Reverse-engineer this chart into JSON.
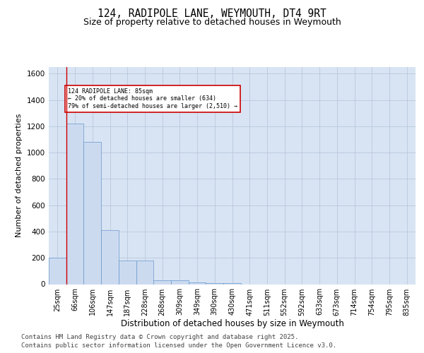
{
  "title_line1": "124, RADIPOLE LANE, WEYMOUTH, DT4 9RT",
  "title_line2": "Size of property relative to detached houses in Weymouth",
  "xlabel": "Distribution of detached houses by size in Weymouth",
  "ylabel": "Number of detached properties",
  "categories": [
    "25sqm",
    "66sqm",
    "106sqm",
    "147sqm",
    "187sqm",
    "228sqm",
    "268sqm",
    "309sqm",
    "349sqm",
    "390sqm",
    "430sqm",
    "471sqm",
    "511sqm",
    "552sqm",
    "592sqm",
    "633sqm",
    "673sqm",
    "714sqm",
    "754sqm",
    "795sqm",
    "835sqm"
  ],
  "values": [
    200,
    1220,
    1080,
    410,
    180,
    180,
    30,
    30,
    15,
    10,
    8,
    0,
    0,
    0,
    0,
    0,
    0,
    0,
    0,
    0,
    0
  ],
  "bar_color": "#ccdaf0",
  "bar_edge_color": "#6699cc",
  "grid_color": "#b8c8de",
  "background_color": "#d8e4f3",
  "vline_color": "#cc0000",
  "annotation_text": "124 RADIPOLE LANE: 85sqm\n← 20% of detached houses are smaller (634)\n79% of semi-detached houses are larger (2,510) →",
  "annotation_box_edge_color": "#cc0000",
  "ylim": [
    0,
    1650
  ],
  "yticks": [
    0,
    200,
    400,
    600,
    800,
    1000,
    1200,
    1400,
    1600
  ],
  "footer_line1": "Contains HM Land Registry data © Crown copyright and database right 2025.",
  "footer_line2": "Contains public sector information licensed under the Open Government Licence v3.0.",
  "fig_bg_color": "#ffffff"
}
